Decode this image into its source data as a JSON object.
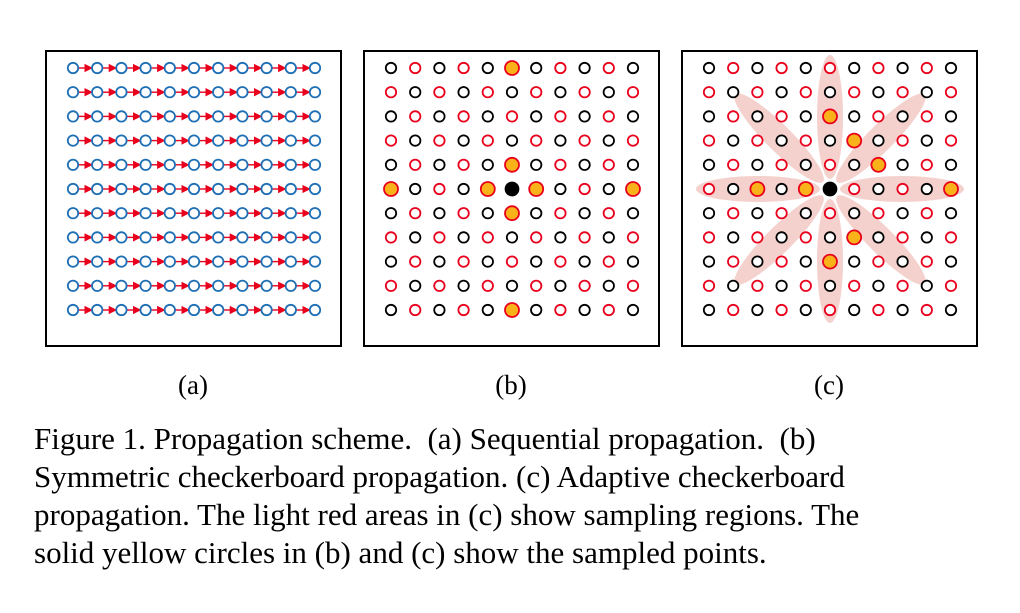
{
  "subfigures": [
    {
      "id": "a",
      "label": "(a)",
      "scheme": "sequential"
    },
    {
      "id": "b",
      "label": "(b)",
      "scheme": "symmetric-checkerboard"
    },
    {
      "id": "c",
      "label": "(c)",
      "scheme": "adaptive-checkerboard"
    }
  ],
  "grid": {
    "rows": 11,
    "cols": 11,
    "center": [
      5,
      5
    ]
  },
  "colors": {
    "sequential_circle": "#1f6fb5",
    "arrow": "#e8001c",
    "checker_red": "#e8001c",
    "checker_black": "#000000",
    "sampled_fill": "#f9b21a",
    "sampled_stroke": "#e8001c",
    "center_fill": "#000000",
    "region_fill": "#f2c9c4"
  },
  "sampled_points": {
    "b": [
      [
        0,
        5
      ],
      [
        4,
        5
      ],
      [
        6,
        5
      ],
      [
        10,
        5
      ],
      [
        5,
        0
      ],
      [
        5,
        4
      ],
      [
        5,
        6
      ],
      [
        5,
        10
      ]
    ],
    "c": [
      [
        2,
        5
      ],
      [
        3,
        6
      ],
      [
        4,
        7
      ],
      [
        5,
        10
      ],
      [
        5,
        4
      ],
      [
        5,
        2
      ],
      [
        7,
        6
      ],
      [
        8,
        5
      ]
    ]
  },
  "caption": {
    "lines": [
      "Figure 1. Propagation scheme.  (a) Sequential propagation.  (b)",
      "Symmetric checkerboard propagation. (c) Adaptive checkerboard",
      "propagation. The light red areas in (c) show sampling regions. The",
      "solid yellow circles in (b) and (c) show the sampled points."
    ]
  }
}
